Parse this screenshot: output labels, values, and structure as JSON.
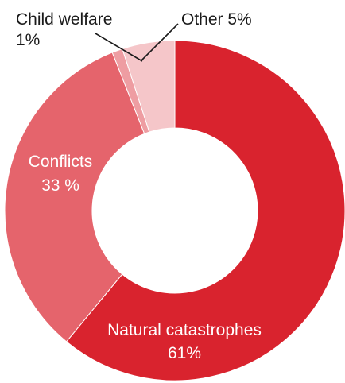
{
  "chart_data": {
    "type": "pie",
    "style": "donut",
    "slices": [
      {
        "label": "Natural catastrophes",
        "value": 61,
        "value_label": "61%",
        "color": "#d9232e"
      },
      {
        "label": "Conflicts",
        "value": 33,
        "value_label": "33 %",
        "color": "#e5646c"
      },
      {
        "label": "Child welfare",
        "value": 1,
        "value_label": "1%",
        "color": "#ee9da2"
      },
      {
        "label": "Other",
        "value": 5,
        "value_label": "5%",
        "color": "#f5c6c9"
      }
    ],
    "labels": {
      "natural": {
        "name": "Natural catastrophes",
        "value": "61%"
      },
      "conflicts": {
        "name": "Conflicts",
        "value": "33 %"
      },
      "child_welfare": {
        "name": "Child welfare",
        "value": "1%"
      },
      "other": {
        "text": "Other 5%"
      }
    }
  }
}
